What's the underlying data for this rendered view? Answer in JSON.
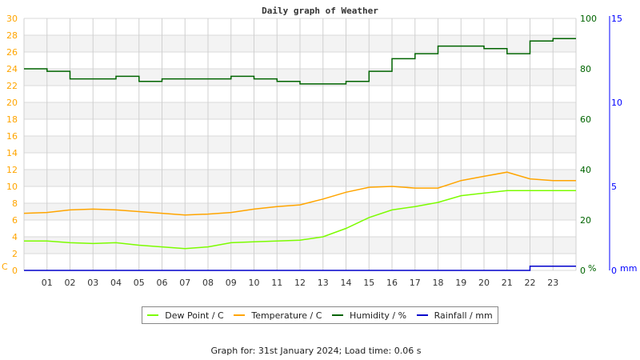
{
  "chart_data": {
    "type": "line",
    "title": "Daily graph of Weather",
    "x": [
      0,
      1,
      2,
      3,
      4,
      5,
      6,
      7,
      8,
      9,
      10,
      11,
      12,
      13,
      14,
      15,
      16,
      17,
      18,
      19,
      20,
      21,
      22,
      23,
      24
    ],
    "x_tick_labels": [
      "01",
      "02",
      "03",
      "04",
      "05",
      "06",
      "07",
      "08",
      "09",
      "10",
      "11",
      "12",
      "13",
      "14",
      "15",
      "16",
      "17",
      "18",
      "19",
      "20",
      "21",
      "22",
      "23"
    ],
    "axes": {
      "left": {
        "unit": "C",
        "range": [
          0,
          30
        ],
        "ticks": [
          0,
          2,
          4,
          6,
          8,
          10,
          12,
          14,
          16,
          18,
          20,
          22,
          24,
          26,
          28,
          30
        ],
        "color": "#ffa500"
      },
      "right": {
        "unit": "%",
        "range": [
          0,
          100
        ],
        "ticks": [
          0,
          20,
          40,
          60,
          80,
          100
        ],
        "color": "#006400"
      },
      "far_right": {
        "unit": "mm",
        "range": [
          0,
          15
        ],
        "ticks": [
          0,
          5,
          10,
          15
        ],
        "color": "#0000ff"
      }
    },
    "grid": true,
    "legend_position": "bottom",
    "series": [
      {
        "name": "Dew Point / C",
        "axis": "left",
        "color": "#7cfc00",
        "values": [
          3.5,
          3.5,
          3.3,
          3.2,
          3.3,
          3.0,
          2.8,
          2.6,
          2.8,
          3.3,
          3.4,
          3.5,
          3.6,
          4.0,
          5.0,
          6.3,
          7.2,
          7.6,
          8.1,
          8.9,
          9.2,
          9.5,
          9.5,
          9.5,
          9.5
        ]
      },
      {
        "name": "Temperature / C",
        "axis": "left",
        "color": "#ffa500",
        "values": [
          6.8,
          6.9,
          7.2,
          7.3,
          7.2,
          7.0,
          6.8,
          6.6,
          6.7,
          6.9,
          7.3,
          7.6,
          7.8,
          8.5,
          9.3,
          9.9,
          10.0,
          9.8,
          9.8,
          10.7,
          11.2,
          11.7,
          10.9,
          10.7,
          10.7
        ]
      },
      {
        "name": "Humidity / %",
        "axis": "right",
        "color": "#006400",
        "values": [
          80,
          79,
          76,
          76,
          77,
          75,
          76,
          76,
          76,
          77,
          76,
          75,
          74,
          74,
          75,
          79,
          84,
          86,
          89,
          89,
          88,
          86,
          91,
          92,
          92
        ]
      },
      {
        "name": "Rainfall / mm",
        "axis": "far_right",
        "color": "#0000cc",
        "values": [
          0,
          0,
          0,
          0,
          0,
          0,
          0,
          0,
          0,
          0,
          0,
          0,
          0,
          0,
          0,
          0,
          0,
          0,
          0,
          0,
          0,
          0,
          0.25,
          0.25,
          0.25
        ]
      }
    ]
  },
  "footer": "Graph for: 31st January 2024; Load time: 0.06 s"
}
